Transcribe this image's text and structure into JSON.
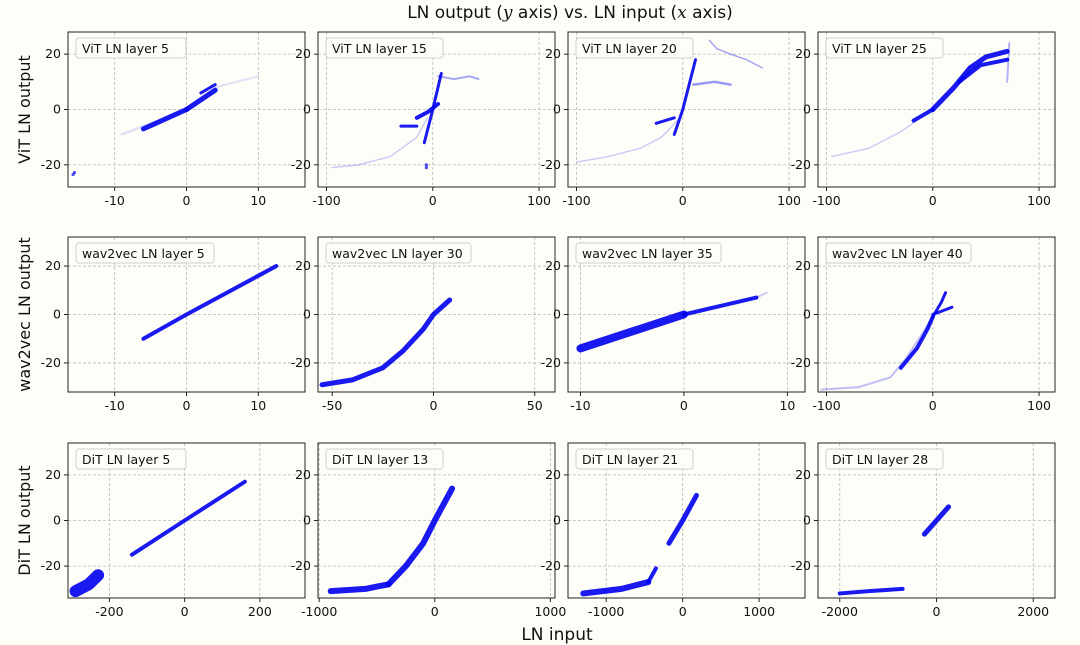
{
  "figure": {
    "title": "LN output (y axis) vs. LN input (x axis)",
    "title_pre": "LN output (",
    "title_y": "y",
    "title_mid": " axis) vs. LN input (",
    "title_x": "x",
    "title_post": " axis)",
    "xlabel": "LN input",
    "point_color": "#0000ee",
    "grid_color": "#b8b8b8",
    "background": "#fefef8"
  },
  "chart_data": [
    {
      "type": "scatter",
      "row": 0,
      "col": 0,
      "model": "ViT",
      "ylabel": "ViT LN output",
      "title": "ViT LN layer 5",
      "xlim": [
        -16.5,
        16.5
      ],
      "ylim": [
        -28,
        28
      ],
      "xticks": [
        -10,
        0,
        10
      ],
      "xticklabels": [
        "-10",
        "0",
        "10"
      ],
      "yticks": [
        -20,
        0,
        20
      ],
      "yticklabels": [
        "-20",
        "0",
        "20"
      ],
      "segments": [
        {
          "x": [
            -9,
            0
          ],
          "y": [
            -9,
            0
          ],
          "w": 2.5,
          "o": 0.12
        },
        {
          "x": [
            -6,
            0
          ],
          "y": [
            -7,
            0
          ],
          "w": 5
        },
        {
          "x": [
            0,
            4
          ],
          "y": [
            0,
            7
          ],
          "w": 5
        },
        {
          "x": [
            2,
            4
          ],
          "y": [
            6,
            9
          ],
          "w": 3
        },
        {
          "x": [
            4,
            10
          ],
          "y": [
            8,
            12
          ],
          "w": 2,
          "o": 0.12
        }
      ],
      "points": [
        [
          -15.8,
          -23.5
        ],
        [
          -15.6,
          -22.8
        ]
      ]
    },
    {
      "type": "scatter",
      "row": 0,
      "col": 1,
      "model": "ViT",
      "ylabel": "",
      "title": "ViT LN layer 15",
      "xlim": [
        -108,
        115
      ],
      "ylim": [
        -28,
        28
      ],
      "xticks": [
        -100,
        0,
        100
      ],
      "xticklabels": [
        "-100",
        "0",
        "100"
      ],
      "yticks": [
        -20,
        0,
        20
      ],
      "yticklabels": [
        "-20",
        "0",
        "20"
      ],
      "segments": [
        {
          "x": [
            -95,
            -70,
            -40,
            -15,
            -5
          ],
          "y": [
            -21,
            -20,
            -17,
            -10,
            -3
          ],
          "w": 1.5,
          "o": 0.2
        },
        {
          "x": [
            -8,
            0,
            8
          ],
          "y": [
            -12,
            0,
            13
          ],
          "w": 3
        },
        {
          "x": [
            5,
            20,
            35,
            43
          ],
          "y": [
            12,
            11,
            12,
            11
          ],
          "w": 2,
          "o": 0.35
        },
        {
          "x": [
            -30,
            -15
          ],
          "y": [
            -6,
            -6
          ],
          "w": 3
        },
        {
          "x": [
            -15,
            -5,
            5
          ],
          "y": [
            -3,
            -1,
            2
          ],
          "w": 4
        }
      ],
      "points": [
        [
          -6,
          -20
        ],
        [
          -6,
          -21
        ]
      ]
    },
    {
      "type": "scatter",
      "row": 0,
      "col": 2,
      "model": "ViT",
      "ylabel": "",
      "title": "ViT LN layer 20",
      "xlim": [
        -108,
        115
      ],
      "ylim": [
        -28,
        28
      ],
      "xticks": [
        -100,
        0,
        100
      ],
      "xticklabels": [
        "-100",
        "0",
        "100"
      ],
      "yticks": [
        -20,
        0,
        20
      ],
      "yticklabels": [
        "-20",
        "0",
        "20"
      ],
      "segments": [
        {
          "x": [
            -100,
            -70,
            -40,
            -20,
            -5
          ],
          "y": [
            -19,
            -17,
            -14,
            -10,
            -4
          ],
          "w": 1.5,
          "o": 0.2
        },
        {
          "x": [
            -8,
            0,
            12
          ],
          "y": [
            -9,
            0,
            18
          ],
          "w": 3
        },
        {
          "x": [
            25,
            32,
            45,
            60,
            75
          ],
          "y": [
            25,
            22,
            20,
            18,
            15
          ],
          "w": 1.5,
          "o": 0.35
        },
        {
          "x": [
            -25,
            -8
          ],
          "y": [
            -5,
            -3
          ],
          "w": 3
        },
        {
          "x": [
            10,
            30,
            45
          ],
          "y": [
            9,
            10,
            9
          ],
          "w": 2.5,
          "o": 0.4
        }
      ],
      "points": []
    },
    {
      "type": "scatter",
      "row": 0,
      "col": 3,
      "model": "ViT",
      "ylabel": "",
      "title": "ViT LN layer 25",
      "xlim": [
        -108,
        115
      ],
      "ylim": [
        -28,
        28
      ],
      "xticks": [
        -100,
        0,
        100
      ],
      "xticklabels": [
        "-100",
        "0",
        "100"
      ],
      "yticks": [
        -20,
        0,
        20
      ],
      "yticklabels": [
        "-20",
        "0",
        "20"
      ],
      "segments": [
        {
          "x": [
            -95,
            -60,
            -30,
            -15
          ],
          "y": [
            -17,
            -14,
            -8,
            -4
          ],
          "w": 1.5,
          "o": 0.2
        },
        {
          "x": [
            -18,
            0
          ],
          "y": [
            -4,
            0
          ],
          "w": 4
        },
        {
          "x": [
            0,
            20,
            35,
            50,
            70
          ],
          "y": [
            0,
            8,
            15,
            19,
            21
          ],
          "w": 5
        },
        {
          "x": [
            25,
            45,
            70
          ],
          "y": [
            10,
            16,
            18
          ],
          "w": 4
        },
        {
          "x": [
            70,
            72
          ],
          "y": [
            10,
            24
          ],
          "w": 2,
          "o": 0.3
        }
      ],
      "points": []
    },
    {
      "type": "scatter",
      "row": 1,
      "col": 0,
      "model": "wav2vec",
      "ylabel": "wav2vec LN output",
      "title": "wav2vec LN layer 5",
      "xlim": [
        -16.5,
        16.5
      ],
      "ylim": [
        -32,
        32
      ],
      "xticks": [
        -10,
        0,
        10
      ],
      "xticklabels": [
        "-10",
        "0",
        "10"
      ],
      "yticks": [
        -20,
        0,
        20
      ],
      "yticklabels": [
        "-20",
        "0",
        "20"
      ],
      "segments": [
        {
          "x": [
            -6,
            0,
            12.5
          ],
          "y": [
            -10,
            0,
            20
          ],
          "w": 4
        }
      ],
      "points": []
    },
    {
      "type": "scatter",
      "row": 1,
      "col": 1,
      "model": "wav2vec",
      "ylabel": "",
      "title": "wav2vec LN layer 30",
      "xlim": [
        -57,
        60
      ],
      "ylim": [
        -32,
        32
      ],
      "xticks": [
        -50,
        0,
        50
      ],
      "xticklabels": [
        "-50",
        "0",
        "50"
      ],
      "yticks": [
        -20,
        0,
        20
      ],
      "yticklabels": [
        "-20",
        "0",
        "20"
      ],
      "segments": [
        {
          "x": [
            -55,
            -40,
            -25,
            -15,
            -5,
            0,
            8
          ],
          "y": [
            -29,
            -27,
            -22,
            -15,
            -6,
            0,
            6
          ],
          "w": 5
        }
      ],
      "points": []
    },
    {
      "type": "scatter",
      "row": 1,
      "col": 2,
      "model": "wav2vec",
      "ylabel": "",
      "title": "wav2vec LN layer 35",
      "xlim": [
        -11.2,
        11.7
      ],
      "ylim": [
        -32,
        32
      ],
      "xticks": [
        -10,
        0,
        10
      ],
      "xticklabels": [
        "-10",
        "0",
        "10"
      ],
      "yticks": [
        -20,
        0,
        20
      ],
      "yticklabels": [
        "-20",
        "0",
        "20"
      ],
      "segments": [
        {
          "x": [
            -10,
            -5,
            0
          ],
          "y": [
            -14,
            -7,
            0
          ],
          "w": 8
        },
        {
          "x": [
            0,
            4,
            7
          ],
          "y": [
            0,
            4,
            7
          ],
          "w": 4
        },
        {
          "x": [
            7,
            8
          ],
          "y": [
            7,
            9
          ],
          "w": 2,
          "o": 0.2
        }
      ],
      "points": []
    },
    {
      "type": "scatter",
      "row": 1,
      "col": 3,
      "model": "wav2vec",
      "ylabel": "",
      "title": "wav2vec LN layer 40",
      "xlim": [
        -108,
        115
      ],
      "ylim": [
        -32,
        32
      ],
      "xticks": [
        -100,
        0,
        100
      ],
      "xticklabels": [
        "-100",
        "0",
        "100"
      ],
      "yticks": [
        -20,
        0,
        20
      ],
      "yticklabels": [
        "-20",
        "0",
        "20"
      ],
      "segments": [
        {
          "x": [
            -105,
            -70,
            -40,
            -25,
            -10,
            0
          ],
          "y": [
            -31,
            -30,
            -26,
            -18,
            -8,
            -1
          ],
          "w": 2,
          "o": 0.25
        },
        {
          "x": [
            -30,
            -15,
            -5,
            0
          ],
          "y": [
            -22,
            -14,
            -6,
            -1
          ],
          "w": 4
        },
        {
          "x": [
            0,
            8,
            12
          ],
          "y": [
            -1,
            5,
            9
          ],
          "w": 3
        },
        {
          "x": [
            0,
            18
          ],
          "y": [
            0,
            3
          ],
          "w": 3
        }
      ],
      "points": []
    },
    {
      "type": "scatter",
      "row": 2,
      "col": 0,
      "model": "DiT",
      "ylabel": "DiT LN output",
      "title": "DiT LN layer 5",
      "xlim": [
        -310,
        320
      ],
      "ylim": [
        -34,
        34
      ],
      "xticks": [
        -200,
        0,
        200
      ],
      "xticklabels": [
        "-200",
        "0",
        "200"
      ],
      "yticks": [
        -20,
        0,
        20
      ],
      "yticklabels": [
        "-20",
        "0",
        "20"
      ],
      "segments": [
        {
          "x": [
            -290,
            -255,
            -230
          ],
          "y": [
            -31,
            -28,
            -24
          ],
          "w": 12
        },
        {
          "x": [
            -140,
            0,
            160
          ],
          "y": [
            -15,
            0,
            17
          ],
          "w": 4
        }
      ],
      "points": []
    },
    {
      "type": "scatter",
      "row": 2,
      "col": 1,
      "model": "DiT",
      "ylabel": "",
      "title": "DiT LN layer 13",
      "xlim": [
        -1010,
        1040
      ],
      "ylim": [
        -34,
        34
      ],
      "xticks": [
        -1000,
        0,
        1000
      ],
      "xticklabels": [
        "-1000",
        "0",
        "1000"
      ],
      "yticks": [
        -20,
        0,
        20
      ],
      "yticklabels": [
        "-20",
        "0",
        "20"
      ],
      "segments": [
        {
          "x": [
            -900,
            -600,
            -400
          ],
          "y": [
            -31,
            -30,
            -28
          ],
          "w": 6
        },
        {
          "x": [
            -400,
            -250,
            -100,
            0,
            150
          ],
          "y": [
            -28,
            -20,
            -10,
            0,
            14
          ],
          "w": 6
        }
      ],
      "points": []
    },
    {
      "type": "scatter",
      "row": 2,
      "col": 2,
      "model": "DiT",
      "ylabel": "",
      "title": "DiT LN layer 21",
      "xlim": [
        -1500,
        1600
      ],
      "ylim": [
        -34,
        34
      ],
      "xticks": [
        -1000,
        0,
        1000
      ],
      "xticklabels": [
        "-1000",
        "0",
        "1000"
      ],
      "yticks": [
        -20,
        0,
        20
      ],
      "yticklabels": [
        "-20",
        "0",
        "20"
      ],
      "segments": [
        {
          "x": [
            -1300,
            -800,
            -450
          ],
          "y": [
            -32,
            -30,
            -27
          ],
          "w": 6
        },
        {
          "x": [
            -450,
            -350
          ],
          "y": [
            -27,
            -21
          ],
          "w": 4
        },
        {
          "x": [
            -180,
            0,
            180
          ],
          "y": [
            -10,
            0,
            11
          ],
          "w": 5
        }
      ],
      "points": []
    },
    {
      "type": "scatter",
      "row": 2,
      "col": 3,
      "model": "DiT",
      "ylabel": "",
      "title": "DiT LN layer 28",
      "xlim": [
        -2450,
        2450
      ],
      "ylim": [
        -34,
        34
      ],
      "xticks": [
        -2000,
        0,
        2000
      ],
      "xticklabels": [
        "-2000",
        "0",
        "2000"
      ],
      "yticks": [
        -20,
        0,
        20
      ],
      "yticklabels": [
        "-20",
        "0",
        "20"
      ],
      "segments": [
        {
          "x": [
            -2000,
            -1400,
            -700
          ],
          "y": [
            -32,
            -31,
            -30
          ],
          "w": 4
        },
        {
          "x": [
            -250,
            0,
            250
          ],
          "y": [
            -6,
            0,
            6
          ],
          "w": 5
        }
      ],
      "points": []
    }
  ]
}
